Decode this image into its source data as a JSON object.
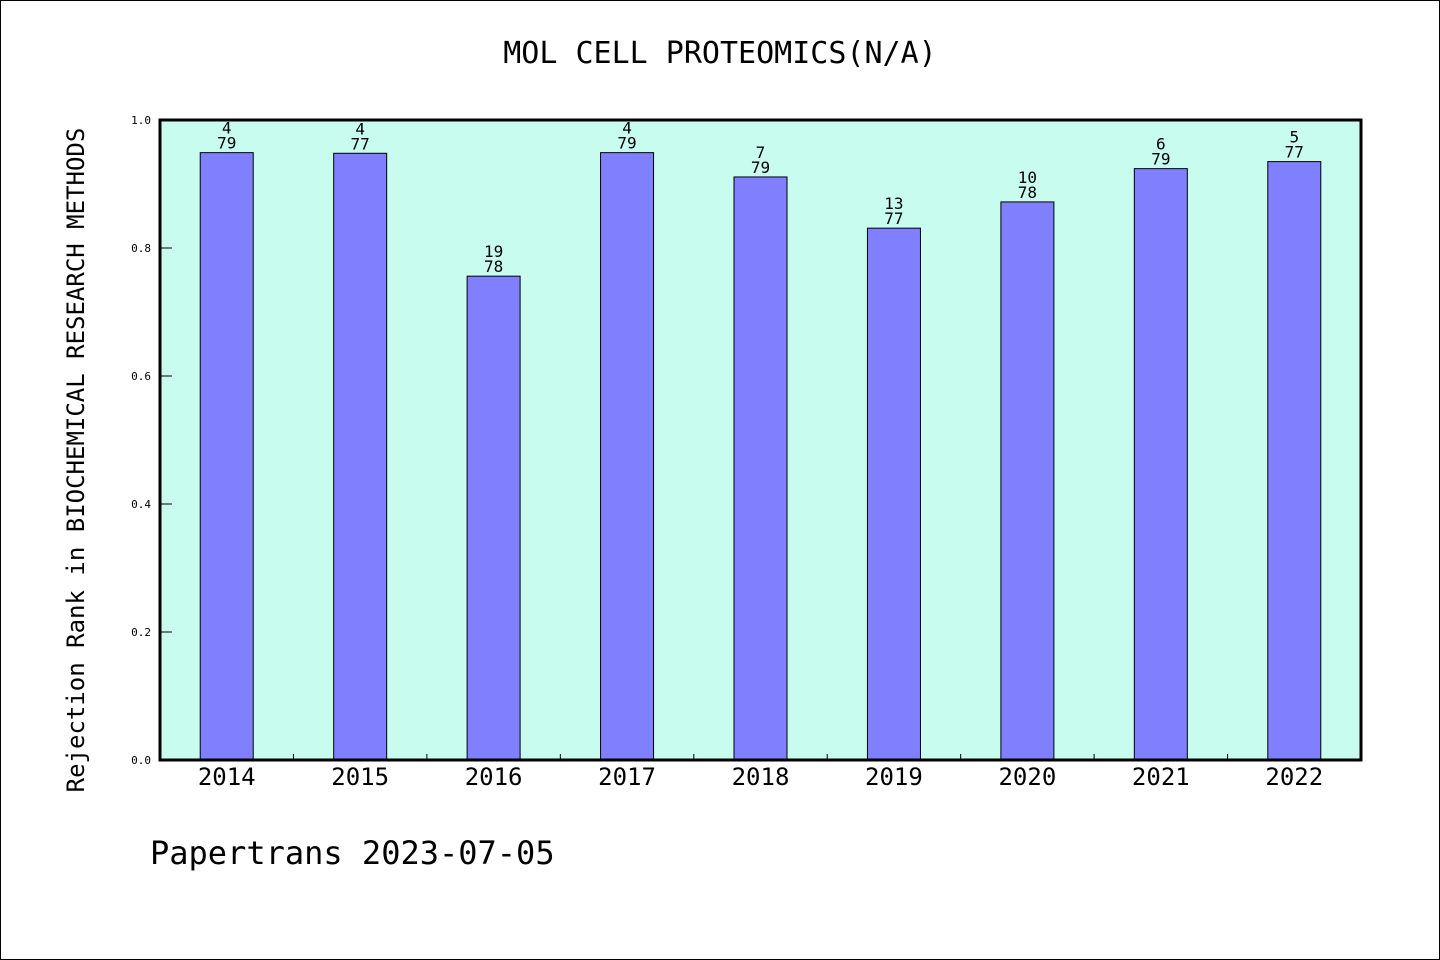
{
  "chart_data": {
    "type": "bar",
    "title": "MOL CELL PROTEOMICS(N/A)",
    "xlabel": "",
    "ylabel": "Rejection Rank in BIOCHEMICAL RESEARCH METHODS",
    "categories": [
      "2014",
      "2015",
      "2016",
      "2017",
      "2018",
      "2019",
      "2020",
      "2021",
      "2022"
    ],
    "values": [
      0.949,
      0.948,
      0.756,
      0.949,
      0.911,
      0.831,
      0.872,
      0.924,
      0.935
    ],
    "bar_labels": [
      {
        "rank": "4",
        "total": "79"
      },
      {
        "rank": "4",
        "total": "77"
      },
      {
        "rank": "19",
        "total": "78"
      },
      {
        "rank": "4",
        "total": "79"
      },
      {
        "rank": "7",
        "total": "79"
      },
      {
        "rank": "13",
        "total": "77"
      },
      {
        "rank": "10",
        "total": "78"
      },
      {
        "rank": "6",
        "total": "79"
      },
      {
        "rank": "5",
        "total": "77"
      }
    ],
    "ylim": [
      0,
      1.0
    ],
    "yticks": [
      "0.0",
      "0.2",
      "0.4",
      "0.6",
      "0.8",
      "1.0"
    ],
    "grid": false,
    "colors": {
      "bar": "#8080ff",
      "plot_background": "#c8fcee",
      "axis": "#000000"
    }
  },
  "footer": "Papertrans 2023-07-05"
}
